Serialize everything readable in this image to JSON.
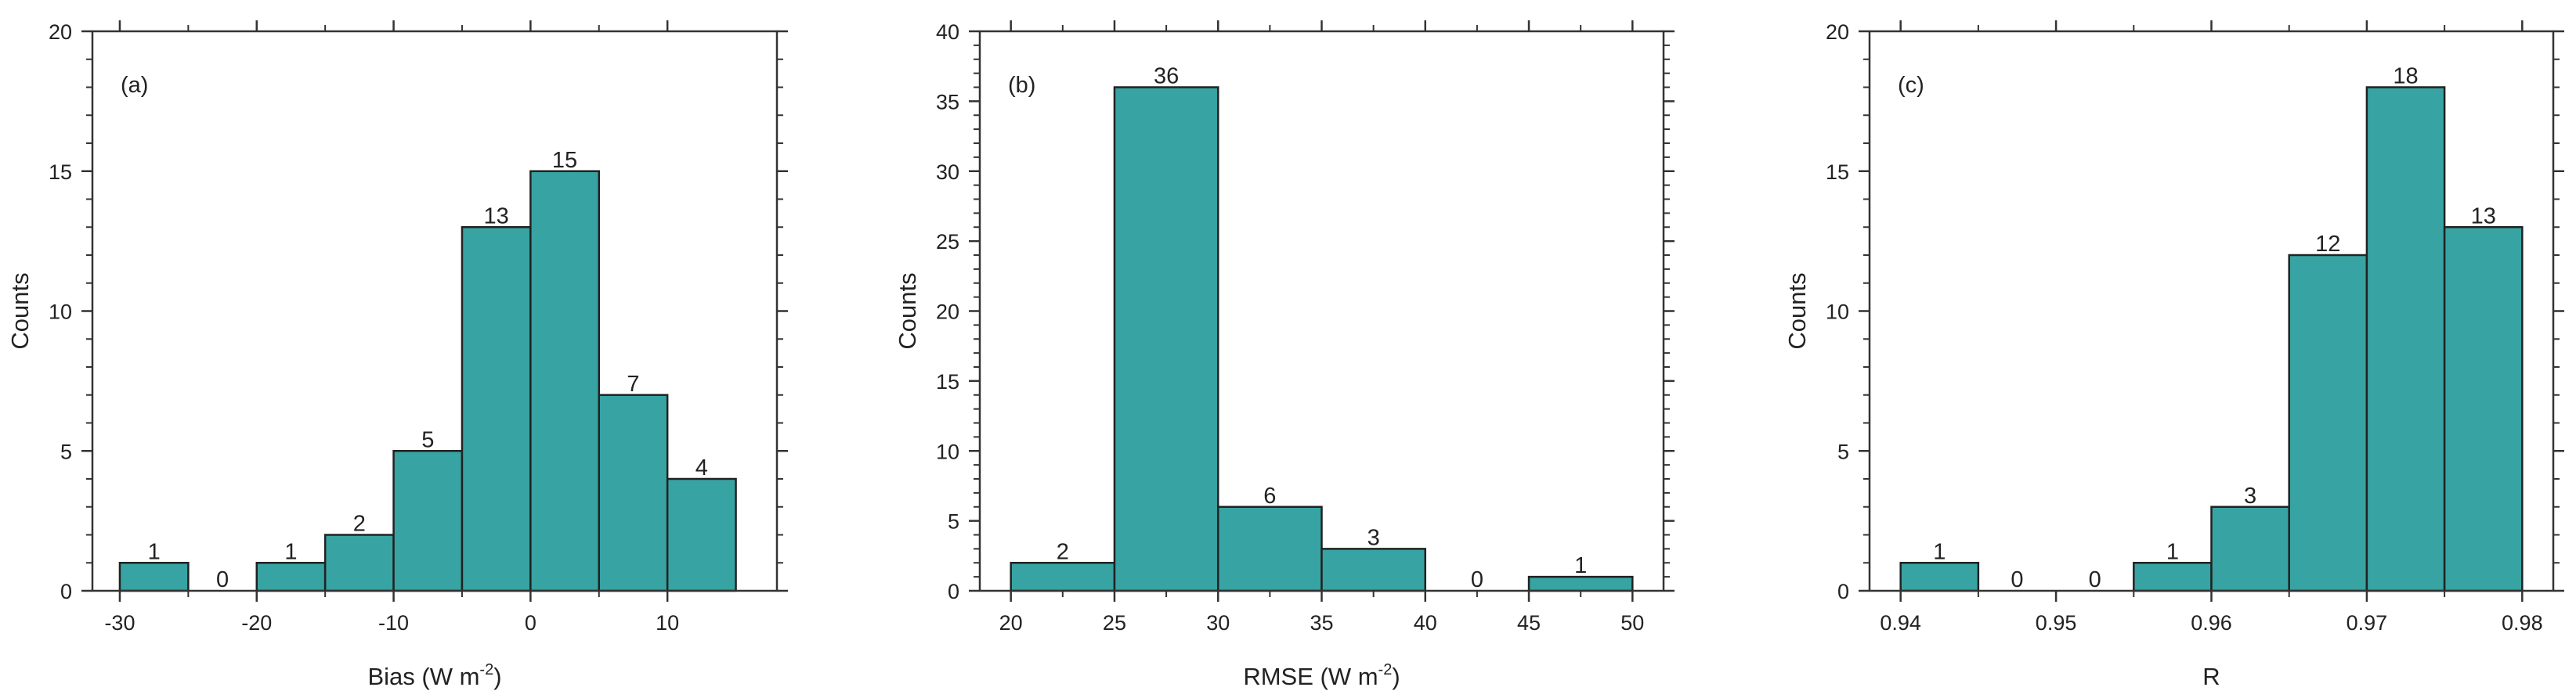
{
  "chart_data": [
    {
      "type": "bar",
      "panel_label": "(a)",
      "xlabel": "Bias (W m",
      "xlabel_sup": "-2",
      "xlabel_end": ")",
      "ylabel": "Counts",
      "xlim": [
        -32,
        18
      ],
      "ylim": [
        0,
        20
      ],
      "xticks": [
        -30,
        -20,
        -10,
        0,
        10
      ],
      "xtick_labels": [
        "-30",
        "-20",
        "-10",
        "0",
        "10"
      ],
      "yticks": [
        0,
        5,
        10,
        15,
        20
      ],
      "ytick_labels": [
        "0",
        "5",
        "10",
        "15",
        "20"
      ],
      "bin_edges": [
        -30,
        -25,
        -20,
        -15,
        -10,
        -5,
        0,
        5,
        10,
        15
      ],
      "values": [
        1,
        0,
        1,
        2,
        5,
        13,
        15,
        7,
        4
      ],
      "value_labels": [
        "1",
        "0",
        "1",
        "2",
        "5",
        "13",
        "15",
        "7",
        "4"
      ]
    },
    {
      "type": "bar",
      "panel_label": "(b)",
      "xlabel": "RMSE (W m",
      "xlabel_sup": "-2",
      "xlabel_end": ")",
      "ylabel": "Counts",
      "xlim": [
        18.5,
        51.5
      ],
      "ylim": [
        0,
        40
      ],
      "xticks": [
        20,
        25,
        30,
        35,
        40,
        45,
        50
      ],
      "xtick_labels": [
        "20",
        "25",
        "30",
        "35",
        "40",
        "45",
        "50"
      ],
      "yticks": [
        0,
        5,
        10,
        15,
        20,
        25,
        30,
        35,
        40
      ],
      "ytick_labels": [
        "0",
        "5",
        "10",
        "15",
        "20",
        "25",
        "30",
        "35",
        "40"
      ],
      "bin_edges": [
        20,
        25,
        30,
        35,
        40,
        45,
        50
      ],
      "values": [
        2,
        36,
        6,
        3,
        0,
        1
      ],
      "value_labels": [
        "2",
        "36",
        "6",
        "3",
        "0",
        "1"
      ]
    },
    {
      "type": "bar",
      "panel_label": "(c)",
      "xlabel": "R",
      "xlabel_sup": "",
      "xlabel_end": "",
      "ylabel": "Counts",
      "xlim": [
        0.938,
        0.982
      ],
      "ylim": [
        0,
        20
      ],
      "xticks": [
        0.94,
        0.95,
        0.96,
        0.97,
        0.98
      ],
      "xtick_labels": [
        "0.94",
        "0.95",
        "0.96",
        "0.97",
        "0.98"
      ],
      "yticks": [
        0,
        5,
        10,
        15,
        20
      ],
      "ytick_labels": [
        "0",
        "5",
        "10",
        "15",
        "20"
      ],
      "bin_edges": [
        0.94,
        0.945,
        0.95,
        0.955,
        0.96,
        0.965,
        0.97,
        0.975,
        0.98
      ],
      "values": [
        1,
        0,
        0,
        1,
        3,
        12,
        18,
        13
      ],
      "value_labels": [
        "1",
        "0",
        "0",
        "1",
        "3",
        "12",
        "18",
        "13"
      ]
    }
  ]
}
